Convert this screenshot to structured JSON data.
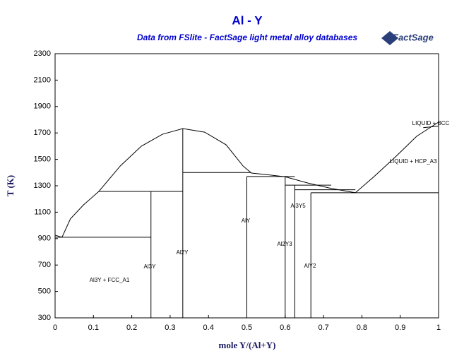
{
  "chart_data": {
    "type": "line",
    "title": "Al - Y",
    "subtitle": "Data from FSlite - FactSage light metal alloy databases",
    "logo": "FactSage",
    "x_label": "mole Y/(Al+Y)",
    "y_label": "T (K)",
    "color": "#000000",
    "xlim": [
      0,
      1
    ],
    "ylim": [
      300,
      2300
    ],
    "xticks": [
      0,
      0.1,
      0.2,
      0.3,
      0.4,
      0.5,
      0.6,
      0.7,
      0.8,
      0.9,
      1
    ],
    "yticks": [
      300,
      500,
      700,
      900,
      1100,
      1300,
      1500,
      1700,
      1900,
      2100,
      2300
    ],
    "series": [
      {
        "x": [
          0,
          0.018
        ],
        "values": [
          926,
          910
        ]
      },
      {
        "x": [
          0,
          0.25
        ],
        "values": [
          910,
          910
        ]
      },
      {
        "x": [
          0.018,
          0.04,
          0.074,
          0.114,
          0.17,
          0.225,
          0.28,
          0.333,
          0.39,
          0.446,
          0.49,
          0.512,
          0.55,
          0.6,
          0.66,
          0.72,
          0.783
        ],
        "values": [
          910,
          1050,
          1155,
          1257,
          1450,
          1600,
          1690,
          1733,
          1706,
          1610,
          1450,
          1396,
          1385,
          1368,
          1320,
          1280,
          1247
        ]
      },
      {
        "x": [
          0.114,
          0.333
        ],
        "values": [
          1257,
          1257
        ]
      },
      {
        "x": [
          0.25,
          0.25
        ],
        "values": [
          300,
          1257
        ]
      },
      {
        "x": [
          0.333,
          0.333
        ],
        "values": [
          300,
          1733
        ]
      },
      {
        "x": [
          0.333,
          0.512
        ],
        "values": [
          1400,
          1400
        ]
      },
      {
        "x": [
          0.5,
          0.5
        ],
        "values": [
          300,
          1370
        ]
      },
      {
        "x": [
          0.5,
          0.625
        ],
        "values": [
          1370,
          1370
        ]
      },
      {
        "x": [
          0.6,
          0.6
        ],
        "values": [
          300,
          1370
        ]
      },
      {
        "x": [
          0.6,
          0.72
        ],
        "values": [
          1305,
          1305
        ]
      },
      {
        "x": [
          0.625,
          0.625
        ],
        "values": [
          300,
          1305
        ]
      },
      {
        "x": [
          0.625,
          0.783
        ],
        "values": [
          1270,
          1270
        ]
      },
      {
        "x": [
          0.667,
          0.667
        ],
        "values": [
          300,
          1247
        ]
      },
      {
        "x": [
          0.667,
          1
        ],
        "values": [
          1247,
          1247
        ]
      },
      {
        "x": [
          0.783,
          0.832,
          0.888,
          0.943,
          1
        ],
        "values": [
          1247,
          1370,
          1520,
          1675,
          1782
        ]
      },
      {
        "x": [
          0.96,
          1
        ],
        "values": [
          1740,
          1752
        ]
      }
    ],
    "annotations": [
      "Al3Y + FCC_A1",
      "Al3Y",
      "Al2Y",
      "AlY",
      "Al2Y3",
      "Al3Y5",
      "AlY2",
      "LIQUID + BCC",
      "LIQUID + HCP_A3"
    ]
  }
}
